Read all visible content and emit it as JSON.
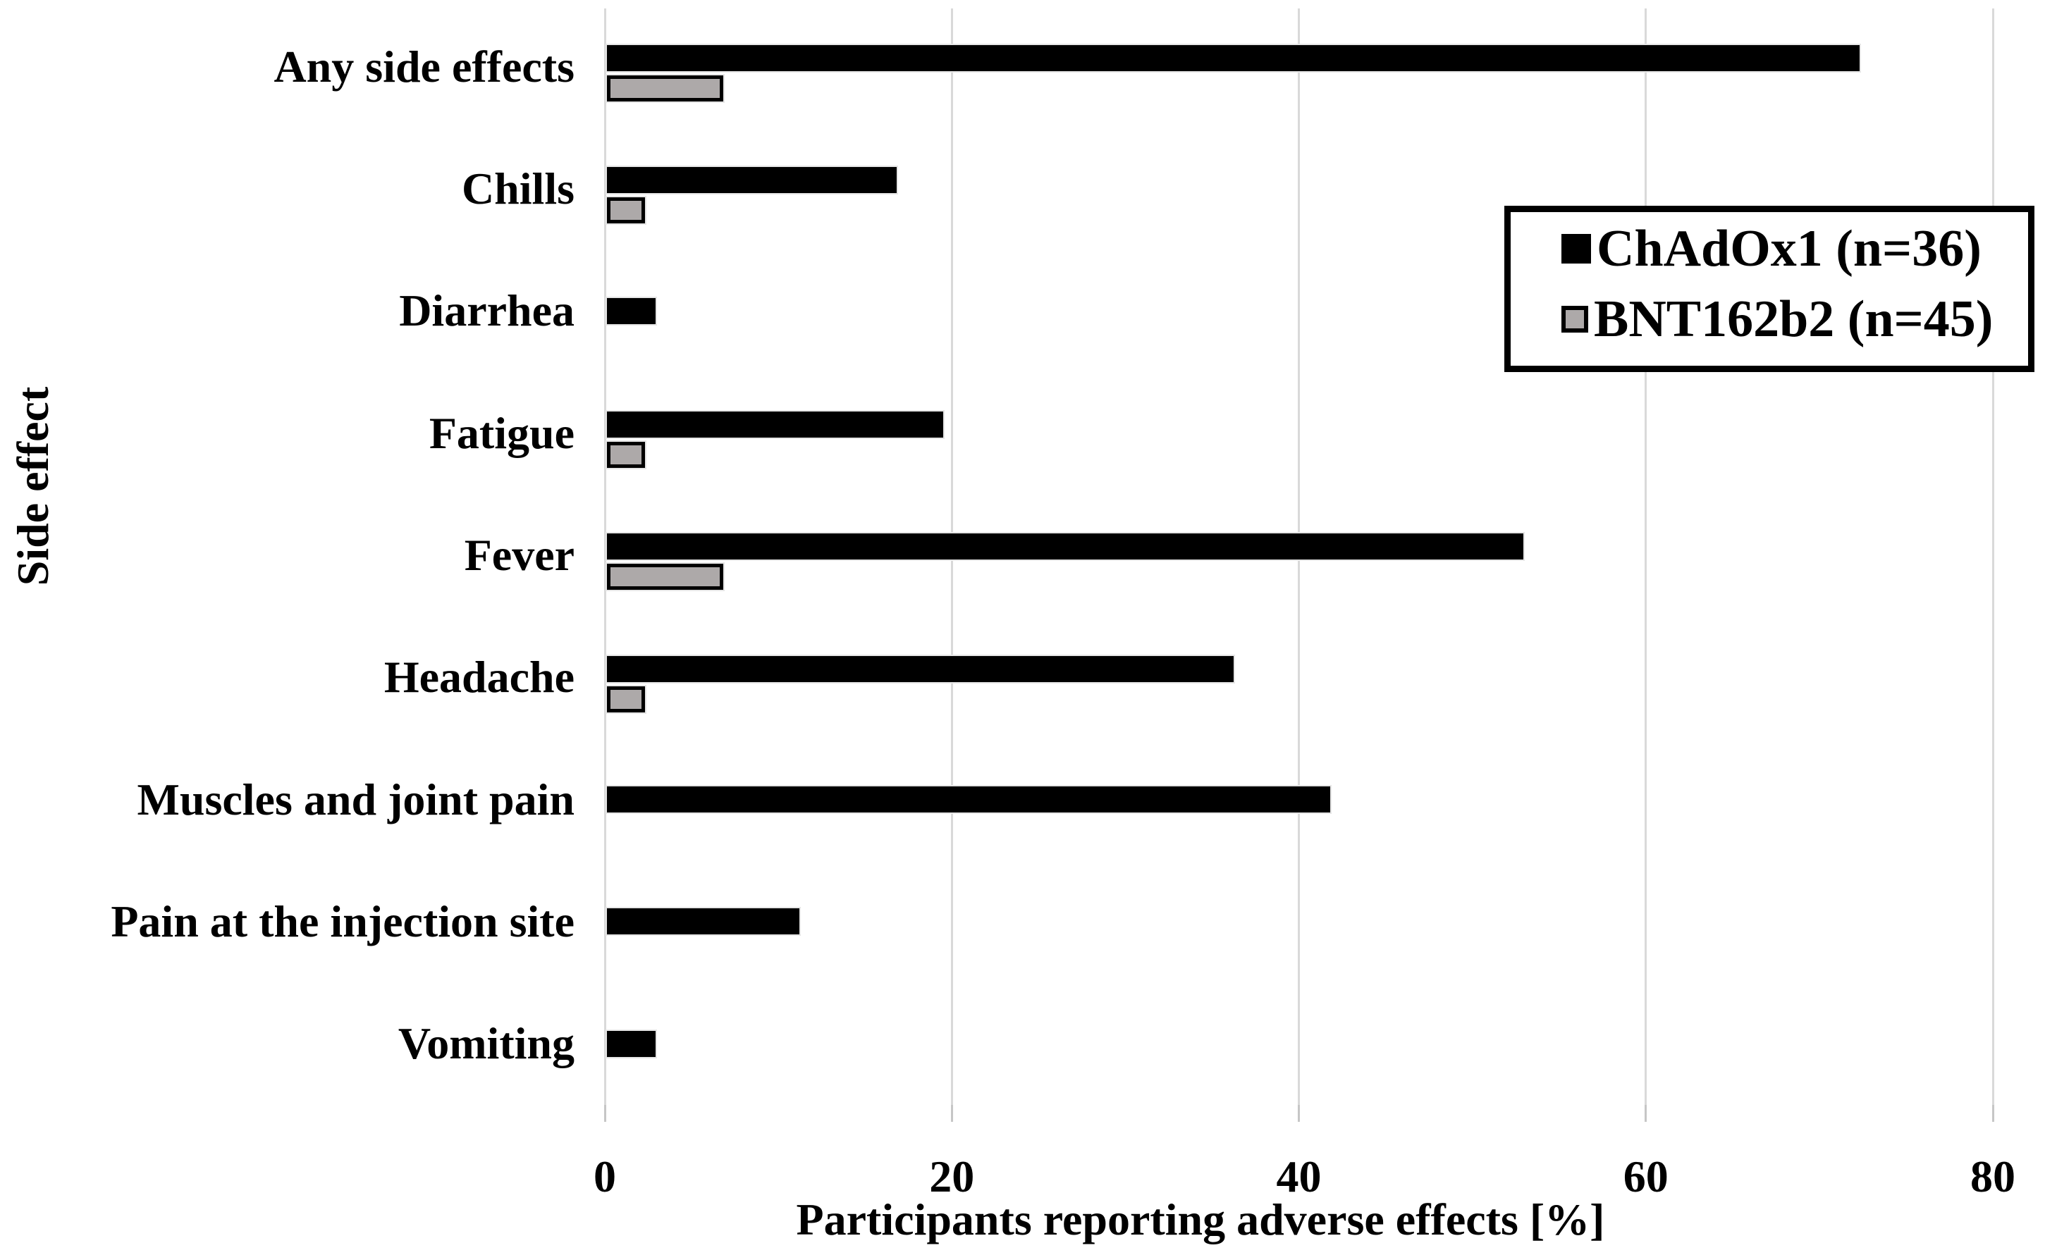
{
  "chart_data": {
    "type": "bar",
    "orientation": "horizontal",
    "xlabel": "Participants reporting adverse effects [%]",
    "ylabel": "Side effect",
    "xlim": [
      0,
      80
    ],
    "xticks": [
      0,
      20,
      40,
      60,
      80
    ],
    "grid": "vertical",
    "legend_position": "upper-right",
    "categories": [
      "Any side effects",
      "Chills",
      "Diarrhea",
      "Fatigue",
      "Fever",
      "Headache",
      "Muscles and joint pain",
      "Pain at the injection site",
      "Vomiting"
    ],
    "series": [
      {
        "name": "ChAdOx1",
        "n": 36,
        "legend_label": "ChAdOx1 (n=36)",
        "color": "#000000",
        "values": [
          72.2,
          16.7,
          2.8,
          19.4,
          52.8,
          36.1,
          41.7,
          11.1,
          2.8
        ]
      },
      {
        "name": "BNT162b2",
        "n": 45,
        "legend_label": "BNT162b2 (n=45)",
        "color": "#ADA9A9",
        "border_color": "#000000",
        "values": [
          6.7,
          2.2,
          0,
          2.2,
          6.7,
          2.2,
          0,
          0,
          0
        ]
      }
    ]
  },
  "colors": {
    "gridline": "#D9D9D9",
    "tick": "#C6C6C6",
    "background": "#FFFFFF",
    "black_bar": "#000000",
    "gray_bar_fill": "#ADA9A9"
  }
}
